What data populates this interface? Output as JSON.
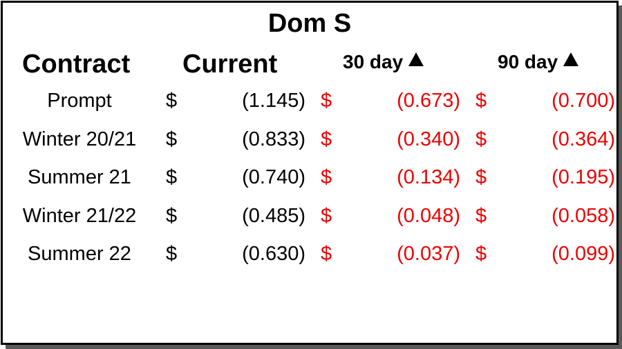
{
  "title": "Dom S",
  "headers": {
    "contract": "Contract",
    "current": "Current",
    "day30": "30 day",
    "day90": "90 day"
  },
  "rows": [
    {
      "contract": "Prompt",
      "current_currency": "$",
      "current": "(1.145)",
      "d30_currency": "$",
      "d30": "(0.673)",
      "d90_currency": "$",
      "d90": "(0.700)"
    },
    {
      "contract": "Winter 20/21",
      "current_currency": "$",
      "current": "(0.833)",
      "d30_currency": "$",
      "d30": "(0.340)",
      "d90_currency": "$",
      "d90": "(0.364)"
    },
    {
      "contract": "Summer 21",
      "current_currency": "$",
      "current": "(0.740)",
      "d30_currency": "$",
      "d30": "(0.134)",
      "d90_currency": "$",
      "d90": "(0.195)"
    },
    {
      "contract": "Winter 21/22",
      "current_currency": "$",
      "current": "(0.485)",
      "d30_currency": "$",
      "d30": "(0.048)",
      "d90_currency": "$",
      "d90": "(0.058)"
    },
    {
      "contract": "Summer 22",
      "current_currency": "$",
      "current": "(0.630)",
      "d30_currency": "$",
      "d30": "(0.037)",
      "d90_currency": "$",
      "d90": "(0.099)"
    }
  ],
  "colors": {
    "change_values": "#ee0000",
    "text": "#000000"
  },
  "icons": {
    "change_indicator": "triangle-up-icon"
  }
}
